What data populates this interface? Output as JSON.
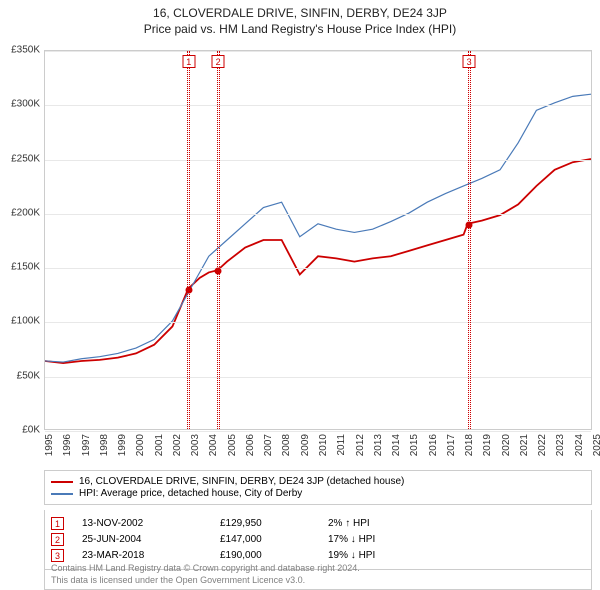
{
  "title_line1": "16, CLOVERDALE DRIVE, SINFIN, DERBY, DE24 3JP",
  "title_line2": "Price paid vs. HM Land Registry's House Price Index (HPI)",
  "chart": {
    "type": "line",
    "background_color": "#ffffff",
    "grid_color": "#e8e8e8",
    "border_color": "#cccccc",
    "ylim": [
      0,
      350
    ],
    "ytick_step": 50,
    "yticks": [
      "£0K",
      "£50K",
      "£100K",
      "£150K",
      "£200K",
      "£250K",
      "£300K",
      "£350K"
    ],
    "xlim": [
      1995,
      2025
    ],
    "xticks": [
      "1995",
      "1996",
      "1997",
      "1998",
      "1999",
      "2000",
      "2001",
      "2002",
      "2003",
      "2004",
      "2005",
      "2006",
      "2007",
      "2008",
      "2009",
      "2010",
      "2011",
      "2012",
      "2013",
      "2014",
      "2015",
      "2016",
      "2017",
      "2018",
      "2019",
      "2020",
      "2021",
      "2022",
      "2023",
      "2024",
      "2025"
    ],
    "label_fontsize": 10,
    "series": [
      {
        "name": "property",
        "label": "16, CLOVERDALE DRIVE, SINFIN, DERBY, DE24 3JP (detached house)",
        "color": "#cc0000",
        "line_width": 1.8,
        "x": [
          1995,
          1996,
          1997,
          1998,
          1999,
          2000,
          2001,
          2002,
          2002.87,
          2003.5,
          2004,
          2004.48,
          2005,
          2006,
          2007,
          2008,
          2009,
          2010,
          2011,
          2012,
          2013,
          2014,
          2015,
          2016,
          2017,
          2018,
          2018.22,
          2019,
          2020,
          2021,
          2022,
          2023,
          2024,
          2025
        ],
        "y": [
          63,
          61,
          63,
          64,
          66,
          70,
          78,
          95,
          130,
          140,
          145,
          147,
          155,
          168,
          175,
          175,
          143,
          160,
          158,
          155,
          158,
          160,
          165,
          170,
          175,
          180,
          190,
          193,
          198,
          208,
          225,
          240,
          247,
          250
        ]
      },
      {
        "name": "hpi",
        "label": "HPI: Average price, detached house, City of Derby",
        "color": "#4a7ab8",
        "line_width": 1.2,
        "x": [
          1995,
          1996,
          1997,
          1998,
          1999,
          2000,
          2001,
          2002,
          2003,
          2004,
          2005,
          2006,
          2007,
          2008,
          2009,
          2010,
          2011,
          2012,
          2013,
          2014,
          2015,
          2016,
          2017,
          2018,
          2019,
          2020,
          2021,
          2022,
          2023,
          2024,
          2025
        ],
        "y": [
          63,
          62,
          65,
          67,
          70,
          75,
          83,
          100,
          130,
          160,
          175,
          190,
          205,
          210,
          178,
          190,
          185,
          182,
          185,
          192,
          200,
          210,
          218,
          225,
          232,
          240,
          265,
          295,
          302,
          308,
          310
        ]
      }
    ],
    "markers": [
      {
        "n": "1",
        "year": 2002.87
      },
      {
        "n": "2",
        "year": 2004.48
      },
      {
        "n": "3",
        "year": 2018.22
      }
    ],
    "sale_points": [
      {
        "year": 2002.87,
        "value": 130
      },
      {
        "year": 2004.48,
        "value": 147
      },
      {
        "year": 2018.22,
        "value": 190
      }
    ]
  },
  "legend": {
    "items": [
      {
        "color": "#cc0000",
        "label": "16, CLOVERDALE DRIVE, SINFIN, DERBY, DE24 3JP (detached house)"
      },
      {
        "color": "#4a7ab8",
        "label": "HPI: Average price, detached house, City of Derby"
      }
    ]
  },
  "sales": [
    {
      "n": "1",
      "date": "13-NOV-2002",
      "price": "£129,950",
      "diff": "2% ↑ HPI"
    },
    {
      "n": "2",
      "date": "25-JUN-2004",
      "price": "£147,000",
      "diff": "17% ↓ HPI"
    },
    {
      "n": "3",
      "date": "23-MAR-2018",
      "price": "£190,000",
      "diff": "19% ↓ HPI"
    }
  ],
  "attribution": {
    "line1": "Contains HM Land Registry data © Crown copyright and database right 2024.",
    "line2": "This data is licensed under the Open Government Licence v3.0."
  }
}
